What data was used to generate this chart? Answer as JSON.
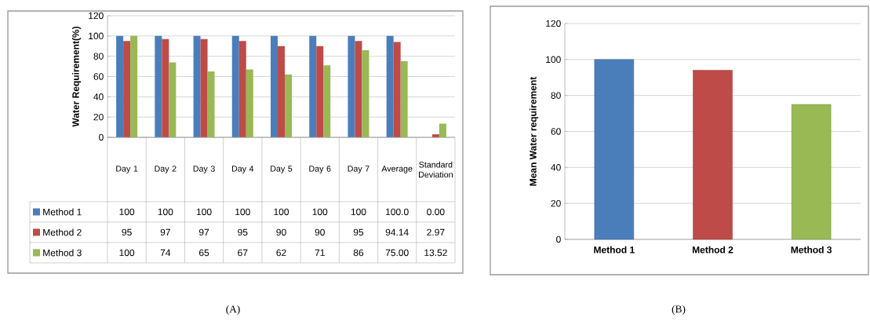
{
  "chart_data": [
    {
      "type": "bar",
      "ylabel": "Water Requirement(%)",
      "categories": [
        "Day 1",
        "Day 2",
        "Day 3",
        "Day 4",
        "Day 5",
        "Day 6",
        "Day 7",
        "Average",
        "Standard Deviation"
      ],
      "series": [
        {
          "name": "Method 1",
          "color": "#4a7ebb",
          "values": [
            100,
            100,
            100,
            100,
            100,
            100,
            100,
            100.0,
            0.0
          ],
          "value_labels": [
            "100",
            "100",
            "100",
            "100",
            "100",
            "100",
            "100",
            "100.0",
            "0.00"
          ]
        },
        {
          "name": "Method 2",
          "color": "#be4b48",
          "values": [
            95,
            97,
            97,
            95,
            90,
            90,
            95,
            94.14,
            2.97
          ],
          "value_labels": [
            "95",
            "97",
            "97",
            "95",
            "90",
            "90",
            "95",
            "94.14",
            "2.97"
          ]
        },
        {
          "name": "Method 3",
          "color": "#98b954",
          "values": [
            100,
            74,
            65,
            67,
            62,
            71,
            86,
            75.0,
            13.52
          ],
          "value_labels": [
            "100",
            "74",
            "65",
            "67",
            "62",
            "71",
            "86",
            "75.00",
            "13.52"
          ]
        }
      ],
      "ylim": [
        0,
        120
      ],
      "yticks": [
        0,
        20,
        40,
        60,
        80,
        100,
        120
      ],
      "grid": "y",
      "legend": "bottom",
      "annotations": [
        "(A)"
      ]
    },
    {
      "type": "bar",
      "ylabel": "Mean Water requirement",
      "categories": [
        "Method 1",
        "Method 2",
        "Method 3"
      ],
      "values": [
        100,
        94,
        75
      ],
      "colors": [
        "#4a7ebb",
        "#be4b48",
        "#98b954"
      ],
      "ylim": [
        0,
        120
      ],
      "yticks": [
        0,
        20,
        40,
        60,
        80,
        100,
        120
      ],
      "grid": "y",
      "annotations": [
        "(B)"
      ]
    }
  ]
}
